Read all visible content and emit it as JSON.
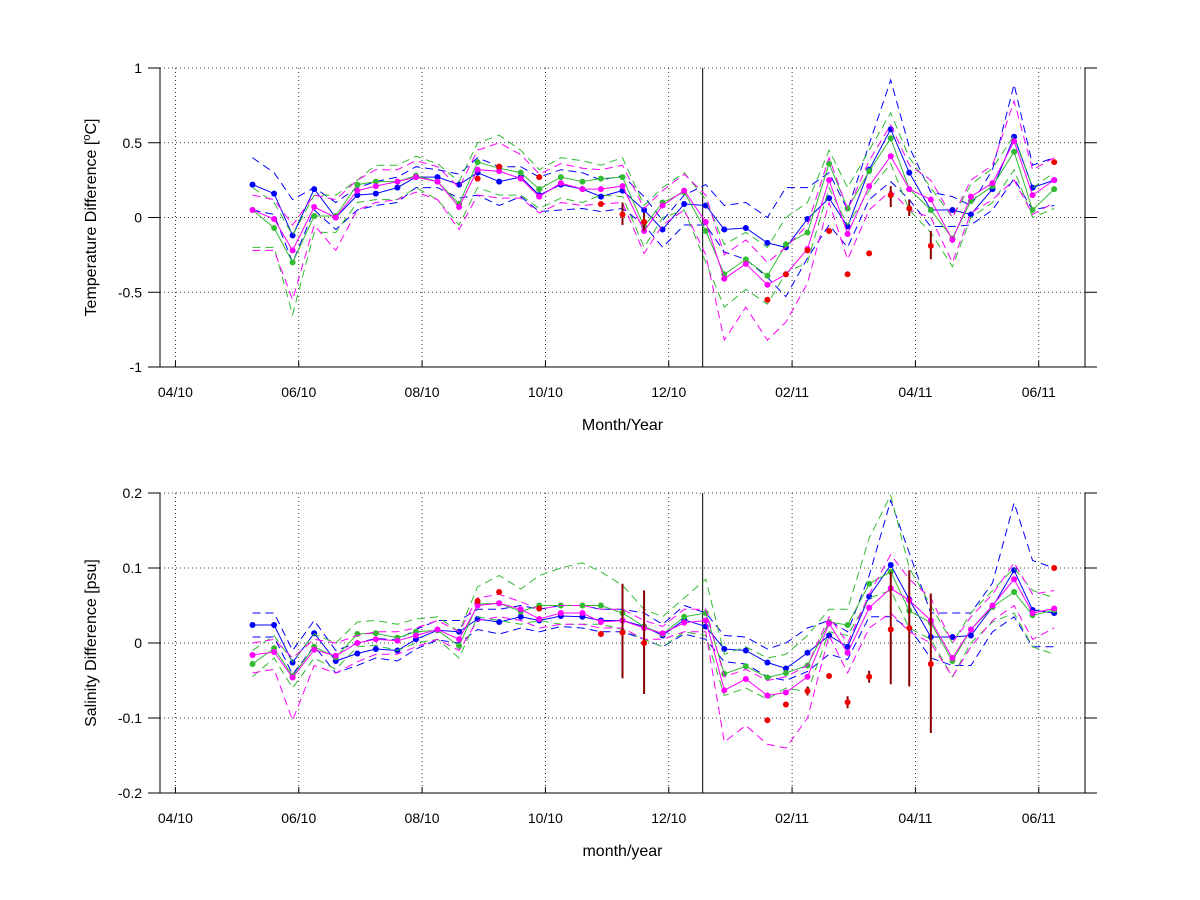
{
  "colors": {
    "blue": "#0000ff",
    "green": "#33bb33",
    "magenta": "#ff00ff",
    "red": "#ee0000",
    "errbar": "#880000",
    "axis": "#000000"
  },
  "chart_data": [
    {
      "type": "line",
      "title": "",
      "xlabel": "Month/Year",
      "ylabel_main": "Temperature Difference [",
      "ylabel_sup": "o",
      "ylabel_tail": "C]",
      "xlim": [
        -0.25,
        14.75
      ],
      "ylim": [
        -1,
        1
      ],
      "xticks": [
        0,
        2,
        4,
        6,
        8,
        10,
        12,
        14
      ],
      "xtick_labels": [
        "04/10",
        "06/10",
        "08/10",
        "10/10",
        "12/10",
        "02/11",
        "04/11",
        "06/11"
      ],
      "yticks": [
        -1,
        -0.5,
        0,
        0.5,
        1
      ],
      "ytick_labels": [
        "-1",
        "-0.5",
        "0",
        "0.5",
        "1"
      ],
      "grid": true,
      "vline_x": 8.55,
      "x": [
        1.25,
        1.6,
        1.9,
        2.25,
        2.6,
        2.95,
        3.25,
        3.6,
        3.9,
        4.25,
        4.6,
        4.9,
        5.25,
        5.6,
        5.9,
        6.25,
        6.6,
        6.9,
        7.25,
        7.6,
        7.9,
        8.25,
        8.6,
        8.9,
        9.25,
        9.6,
        9.9,
        10.25,
        10.6,
        10.9,
        11.25,
        11.6,
        11.9,
        12.25,
        12.6,
        12.9,
        13.25,
        13.6,
        13.9,
        14.25
      ],
      "series": [
        {
          "color_key": "blue",
          "values": [
            0.22,
            0.16,
            -0.12,
            0.19,
            0.0,
            0.15,
            0.16,
            0.2,
            0.27,
            0.27,
            0.22,
            0.3,
            0.24,
            0.27,
            0.15,
            0.22,
            0.19,
            0.14,
            0.18,
            0.05,
            -0.08,
            0.09,
            0.08,
            -0.08,
            -0.07,
            -0.17,
            -0.2,
            -0.01,
            0.13,
            -0.06,
            0.32,
            0.59,
            0.3,
            0.05,
            0.05,
            0.02,
            0.19,
            0.54,
            0.2,
            0.25
          ],
          "upper": [
            0.4,
            0.3,
            0.12,
            0.2,
            0.1,
            0.2,
            0.24,
            0.27,
            0.34,
            0.32,
            0.29,
            0.4,
            0.34,
            0.34,
            0.27,
            0.32,
            0.3,
            0.25,
            0.28,
            0.14,
            -0.02,
            0.15,
            0.22,
            0.08,
            0.1,
            0.0,
            0.2,
            0.2,
            0.3,
            0.05,
            0.49,
            0.92,
            0.47,
            0.17,
            0.14,
            0.08,
            0.32,
            0.89,
            0.35,
            0.4
          ],
          "lower": [
            0.05,
            0.02,
            -0.3,
            0.05,
            -0.08,
            0.05,
            0.08,
            0.1,
            0.2,
            0.2,
            0.13,
            0.15,
            0.08,
            0.14,
            0.04,
            0.05,
            0.06,
            0.04,
            0.06,
            -0.05,
            -0.2,
            -0.05,
            -0.05,
            -0.23,
            -0.28,
            -0.4,
            -0.53,
            -0.27,
            -0.05,
            -0.2,
            0.12,
            0.24,
            0.12,
            -0.06,
            -0.06,
            -0.05,
            0.05,
            0.26,
            0.05,
            0.08
          ]
        },
        {
          "color_key": "green",
          "values": [
            0.05,
            -0.07,
            -0.3,
            0.01,
            0.01,
            0.22,
            0.24,
            0.24,
            0.28,
            0.24,
            0.09,
            0.37,
            0.33,
            0.3,
            0.19,
            0.27,
            0.24,
            0.26,
            0.27,
            -0.06,
            0.1,
            0.17,
            -0.09,
            -0.38,
            -0.28,
            -0.39,
            -0.18,
            -0.1,
            0.36,
            0.06,
            0.31,
            0.53,
            0.19,
            0.05,
            -0.14,
            0.11,
            0.21,
            0.44,
            0.05,
            0.19
          ],
          "upper": [
            0.2,
            0.1,
            -0.12,
            0.15,
            0.15,
            0.25,
            0.35,
            0.35,
            0.41,
            0.36,
            0.24,
            0.5,
            0.55,
            0.45,
            0.32,
            0.4,
            0.38,
            0.35,
            0.4,
            0.08,
            0.2,
            0.3,
            0.12,
            -0.18,
            -0.1,
            -0.2,
            0.0,
            0.1,
            0.45,
            0.2,
            0.45,
            0.7,
            0.4,
            0.2,
            0.0,
            0.22,
            0.33,
            0.55,
            0.2,
            0.3
          ],
          "lower": [
            -0.2,
            -0.2,
            -0.65,
            -0.1,
            -0.1,
            0.1,
            0.12,
            0.12,
            0.2,
            0.12,
            -0.05,
            0.2,
            0.15,
            0.15,
            0.06,
            0.13,
            0.1,
            0.15,
            0.14,
            -0.2,
            0.0,
            0.05,
            -0.3,
            -0.6,
            -0.48,
            -0.58,
            -0.37,
            -0.3,
            0.2,
            -0.05,
            0.18,
            0.36,
            0.05,
            -0.1,
            -0.33,
            0.0,
            0.1,
            0.32,
            0.0,
            0.06
          ]
        },
        {
          "color_key": "magenta",
          "values": [
            0.05,
            -0.01,
            -0.22,
            0.07,
            0.0,
            0.18,
            0.21,
            0.24,
            0.27,
            0.24,
            0.07,
            0.32,
            0.31,
            0.26,
            0.14,
            0.23,
            0.19,
            0.19,
            0.21,
            -0.09,
            0.08,
            0.18,
            -0.03,
            -0.41,
            -0.31,
            -0.45,
            -0.38,
            -0.21,
            0.25,
            -0.11,
            0.21,
            0.41,
            0.19,
            0.12,
            -0.15,
            0.14,
            0.23,
            0.51,
            0.15,
            0.25
          ],
          "upper": [
            0.15,
            0.12,
            -0.05,
            0.15,
            0.12,
            0.25,
            0.32,
            0.32,
            0.38,
            0.34,
            0.2,
            0.45,
            0.5,
            0.42,
            0.29,
            0.36,
            0.33,
            0.32,
            0.35,
            0.06,
            0.18,
            0.29,
            0.15,
            -0.25,
            -0.15,
            -0.3,
            -0.2,
            -0.05,
            0.4,
            0.05,
            0.38,
            0.62,
            0.35,
            0.25,
            0.0,
            0.25,
            0.35,
            0.78,
            0.32,
            0.4
          ],
          "lower": [
            -0.22,
            -0.22,
            -0.55,
            -0.05,
            -0.22,
            0.05,
            0.1,
            0.12,
            0.17,
            0.12,
            -0.08,
            0.15,
            0.13,
            0.13,
            0.03,
            0.1,
            0.08,
            0.09,
            0.1,
            -0.24,
            -0.05,
            0.05,
            -0.25,
            -0.82,
            -0.6,
            -0.82,
            -0.7,
            -0.44,
            0.1,
            -0.28,
            0.05,
            0.18,
            0.05,
            0.0,
            -0.3,
            0.03,
            0.12,
            0.25,
            0.02,
            0.1
          ]
        }
      ],
      "points": {
        "x": [
          4.9,
          5.25,
          5.9,
          6.9,
          7.25,
          7.6,
          9.6,
          9.9,
          10.25,
          10.6,
          10.9,
          11.25,
          11.6,
          11.9,
          12.25,
          14.25
        ],
        "values": [
          0.26,
          0.34,
          0.27,
          0.09,
          0.02,
          -0.03,
          -0.55,
          -0.38,
          -0.22,
          -0.09,
          -0.38,
          -0.24,
          0.15,
          0.06,
          -0.19,
          0.37
        ]
      },
      "errorbars": [
        {
          "x": 7.25,
          "center": 0.02,
          "low": -0.05,
          "high": 0.1
        },
        {
          "x": 7.6,
          "center": -0.03,
          "low": -0.09,
          "high": 0.03
        },
        {
          "x": 11.6,
          "center": 0.15,
          "low": 0.07,
          "high": 0.21
        },
        {
          "x": 11.9,
          "center": 0.06,
          "low": 0.01,
          "high": 0.12
        },
        {
          "x": 12.25,
          "center": -0.19,
          "low": -0.28,
          "high": -0.09
        }
      ]
    },
    {
      "type": "line",
      "title": "",
      "xlabel": "month/year",
      "ylabel_main": "Salinity Difference [psu]",
      "ylabel_sup": "",
      "ylabel_tail": "",
      "xlim": [
        -0.25,
        14.75
      ],
      "ylim": [
        -0.2,
        0.2
      ],
      "xticks": [
        0,
        2,
        4,
        6,
        8,
        10,
        12,
        14
      ],
      "xtick_labels": [
        "04/10",
        "06/10",
        "08/10",
        "10/10",
        "12/10",
        "02/11",
        "04/11",
        "06/11"
      ],
      "yticks": [
        -0.2,
        -0.1,
        0,
        0.1,
        0.2
      ],
      "ytick_labels": [
        "-0.2",
        "-0.1",
        "0",
        "0.1",
        "0.2"
      ],
      "grid": true,
      "vline_x": 8.55,
      "x": [
        1.25,
        1.6,
        1.9,
        2.25,
        2.6,
        2.95,
        3.25,
        3.6,
        3.9,
        4.25,
        4.6,
        4.9,
        5.25,
        5.6,
        5.9,
        6.25,
        6.6,
        6.9,
        7.25,
        7.6,
        7.9,
        8.25,
        8.6,
        8.9,
        9.25,
        9.6,
        9.9,
        10.25,
        10.6,
        10.9,
        11.25,
        11.6,
        11.9,
        12.25,
        12.6,
        12.9,
        13.25,
        13.6,
        13.9,
        14.25
      ],
      "series": [
        {
          "color_key": "blue",
          "values": [
            0.024,
            0.024,
            -0.026,
            0.013,
            -0.024,
            -0.014,
            -0.008,
            -0.01,
            0.005,
            0.017,
            0.015,
            0.032,
            0.028,
            0.035,
            0.03,
            0.036,
            0.035,
            0.03,
            0.03,
            0.022,
            0.01,
            0.031,
            0.022,
            -0.008,
            -0.01,
            -0.026,
            -0.034,
            -0.013,
            0.01,
            -0.005,
            0.062,
            0.104,
            0.058,
            0.008,
            0.008,
            0.01,
            0.048,
            0.097,
            0.044,
            0.04
          ],
          "upper": [
            0.04,
            0.04,
            -0.01,
            0.03,
            -0.01,
            0.0,
            0.006,
            0.004,
            0.018,
            0.03,
            0.03,
            0.045,
            0.045,
            0.05,
            0.045,
            0.05,
            0.05,
            0.045,
            0.045,
            0.04,
            0.025,
            0.05,
            0.04,
            0.01,
            0.008,
            -0.008,
            0.0,
            0.02,
            0.03,
            0.015,
            0.09,
            0.19,
            0.12,
            0.04,
            0.04,
            0.04,
            0.08,
            0.187,
            0.11,
            0.1
          ],
          "lower": [
            0.008,
            0.008,
            -0.042,
            -0.004,
            -0.04,
            -0.03,
            -0.02,
            -0.024,
            -0.008,
            0.004,
            0.0,
            0.018,
            0.012,
            0.02,
            0.015,
            0.022,
            0.02,
            0.015,
            0.015,
            0.005,
            -0.005,
            0.012,
            0.005,
            -0.025,
            -0.028,
            -0.045,
            -0.05,
            -0.038,
            -0.015,
            -0.022,
            0.035,
            0.035,
            0.02,
            -0.02,
            -0.03,
            -0.03,
            0.015,
            0.035,
            -0.005,
            -0.005
          ]
        },
        {
          "color_key": "green",
          "values": [
            -0.028,
            -0.007,
            -0.044,
            -0.005,
            -0.019,
            0.012,
            0.013,
            0.007,
            0.015,
            0.017,
            -0.004,
            0.052,
            0.053,
            0.042,
            0.05,
            0.05,
            0.05,
            0.05,
            0.04,
            0.022,
            0.012,
            0.035,
            0.04,
            -0.041,
            -0.031,
            -0.046,
            -0.04,
            -0.03,
            0.028,
            0.024,
            0.079,
            0.095,
            0.043,
            0.027,
            -0.024,
            0.018,
            0.048,
            0.068,
            0.037,
            0.044
          ],
          "upper": [
            -0.01,
            0.01,
            -0.025,
            0.012,
            0.0,
            0.028,
            0.03,
            0.025,
            0.032,
            0.035,
            0.015,
            0.075,
            0.09,
            0.072,
            0.09,
            0.1,
            0.107,
            0.095,
            0.077,
            0.045,
            0.035,
            0.06,
            0.085,
            -0.015,
            -0.005,
            -0.02,
            -0.015,
            0.01,
            0.045,
            0.045,
            0.14,
            0.197,
            0.1,
            0.05,
            0.0,
            0.04,
            0.07,
            0.1,
            0.07,
            0.06
          ],
          "lower": [
            -0.045,
            -0.02,
            -0.06,
            -0.02,
            -0.035,
            -0.005,
            -0.003,
            -0.01,
            0.0,
            0.005,
            -0.02,
            0.035,
            0.03,
            0.025,
            0.03,
            0.025,
            0.025,
            0.025,
            0.018,
            0.005,
            -0.005,
            0.015,
            0.01,
            -0.07,
            -0.06,
            -0.075,
            -0.06,
            -0.065,
            0.015,
            0.01,
            0.06,
            0.07,
            0.02,
            0.005,
            -0.045,
            0.0,
            0.028,
            0.04,
            -0.005,
            -0.015
          ]
        },
        {
          "color_key": "magenta",
          "values": [
            -0.016,
            -0.012,
            -0.046,
            -0.009,
            -0.017,
            0.0,
            0.005,
            0.003,
            0.01,
            0.018,
            0.005,
            0.05,
            0.053,
            0.045,
            0.032,
            0.04,
            0.04,
            0.028,
            0.03,
            0.02,
            0.013,
            0.027,
            0.03,
            -0.063,
            -0.048,
            -0.07,
            -0.066,
            -0.045,
            0.026,
            -0.013,
            0.047,
            0.073,
            0.057,
            0.03,
            -0.02,
            0.018,
            0.05,
            0.085,
            0.04,
            0.046
          ],
          "upper": [
            0.0,
            0.005,
            -0.02,
            0.005,
            0.0,
            0.01,
            0.015,
            0.015,
            0.02,
            0.03,
            0.015,
            0.06,
            0.065,
            0.055,
            0.045,
            0.05,
            0.05,
            0.045,
            0.045,
            0.03,
            0.022,
            0.045,
            0.045,
            -0.045,
            -0.035,
            -0.05,
            -0.045,
            -0.03,
            0.035,
            0.0,
            0.065,
            0.118,
            0.085,
            0.06,
            0.0,
            0.035,
            0.065,
            0.107,
            0.065,
            0.07
          ],
          "lower": [
            -0.04,
            -0.035,
            -0.103,
            -0.03,
            -0.04,
            -0.025,
            -0.015,
            -0.015,
            -0.005,
            0.005,
            -0.01,
            0.03,
            0.035,
            0.03,
            0.02,
            0.025,
            0.025,
            0.02,
            0.02,
            0.005,
            0.005,
            0.015,
            0.015,
            -0.132,
            -0.11,
            -0.135,
            -0.14,
            -0.1,
            0.01,
            -0.04,
            0.02,
            0.04,
            0.015,
            0.0,
            -0.045,
            -0.005,
            0.03,
            0.05,
            0.005,
            0.02
          ]
        }
      ],
      "points": {
        "x": [
          4.9,
          5.25,
          5.9,
          6.9,
          7.25,
          7.6,
          9.6,
          9.9,
          10.25,
          10.6,
          10.9,
          11.25,
          11.6,
          11.9,
          12.25,
          14.25
        ],
        "values": [
          0.056,
          0.068,
          0.046,
          0.012,
          0.014,
          0.0,
          -0.103,
          -0.082,
          -0.064,
          -0.044,
          -0.079,
          -0.045,
          0.018,
          0.02,
          -0.028,
          0.1
        ]
      },
      "errorbars": [
        {
          "x": 7.25,
          "center": 0.014,
          "low": -0.047,
          "high": 0.079
        },
        {
          "x": 7.6,
          "center": 0.0,
          "low": -0.068,
          "high": 0.07
        },
        {
          "x": 10.25,
          "center": -0.064,
          "low": -0.07,
          "high": -0.058
        },
        {
          "x": 10.9,
          "center": -0.079,
          "low": -0.087,
          "high": -0.071
        },
        {
          "x": 11.25,
          "center": -0.045,
          "low": -0.053,
          "high": -0.037
        },
        {
          "x": 11.6,
          "center": 0.018,
          "low": -0.055,
          "high": 0.095
        },
        {
          "x": 11.9,
          "center": 0.02,
          "low": -0.058,
          "high": 0.097
        },
        {
          "x": 12.25,
          "center": -0.028,
          "low": -0.12,
          "high": 0.066
        }
      ]
    }
  ]
}
